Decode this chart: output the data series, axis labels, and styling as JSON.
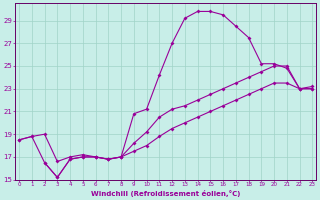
{
  "xlabel": "Windchill (Refroidissement éolien,°C)",
  "background_color": "#c8eee8",
  "grid_color": "#a0d4c8",
  "line_color": "#990099",
  "spine_color": "#660066",
  "xlim": [
    0,
    23
  ],
  "ylim": [
    15,
    30
  ],
  "yticks": [
    15,
    17,
    19,
    21,
    23,
    25,
    27,
    29
  ],
  "xticks": [
    0,
    1,
    2,
    3,
    4,
    5,
    6,
    7,
    8,
    9,
    10,
    11,
    12,
    13,
    14,
    15,
    16,
    17,
    18,
    19,
    20,
    21,
    22,
    23
  ],
  "curve1_x": [
    0,
    1,
    2,
    3,
    4,
    5,
    6,
    7,
    8,
    9,
    10,
    11,
    12,
    13,
    14,
    15,
    16,
    17,
    18,
    19,
    20,
    21,
    22,
    23
  ],
  "curve1_y": [
    18.5,
    18.8,
    19.0,
    16.6,
    17.0,
    17.2,
    17.0,
    16.8,
    17.0,
    20.8,
    21.2,
    24.2,
    27.0,
    29.2,
    29.8,
    29.8,
    29.5,
    28.5,
    27.5,
    25.2,
    25.2,
    24.8,
    23.0,
    23.2
  ],
  "curve2_x": [
    0,
    1,
    2,
    3,
    4,
    5,
    6,
    7,
    8,
    9,
    10,
    11,
    12,
    13,
    14,
    15,
    16,
    17,
    18,
    19,
    20,
    21,
    22,
    23
  ],
  "curve2_y": [
    18.5,
    18.8,
    16.5,
    15.2,
    16.8,
    17.0,
    17.0,
    16.8,
    17.0,
    18.2,
    19.2,
    20.5,
    21.2,
    21.5,
    22.0,
    22.5,
    23.0,
    23.5,
    24.0,
    24.5,
    25.0,
    25.0,
    23.0,
    23.0
  ],
  "curve3_x": [
    2,
    3,
    4,
    5,
    6,
    7,
    8,
    9,
    10,
    11,
    12,
    13,
    14,
    15,
    16,
    17,
    18,
    19,
    20,
    21,
    22,
    23
  ],
  "curve3_y": [
    16.5,
    15.2,
    16.8,
    17.0,
    17.0,
    16.8,
    17.0,
    17.5,
    18.0,
    18.8,
    19.5,
    20.0,
    20.5,
    21.0,
    21.5,
    22.0,
    22.5,
    23.0,
    23.5,
    23.5,
    23.0,
    23.0
  ]
}
